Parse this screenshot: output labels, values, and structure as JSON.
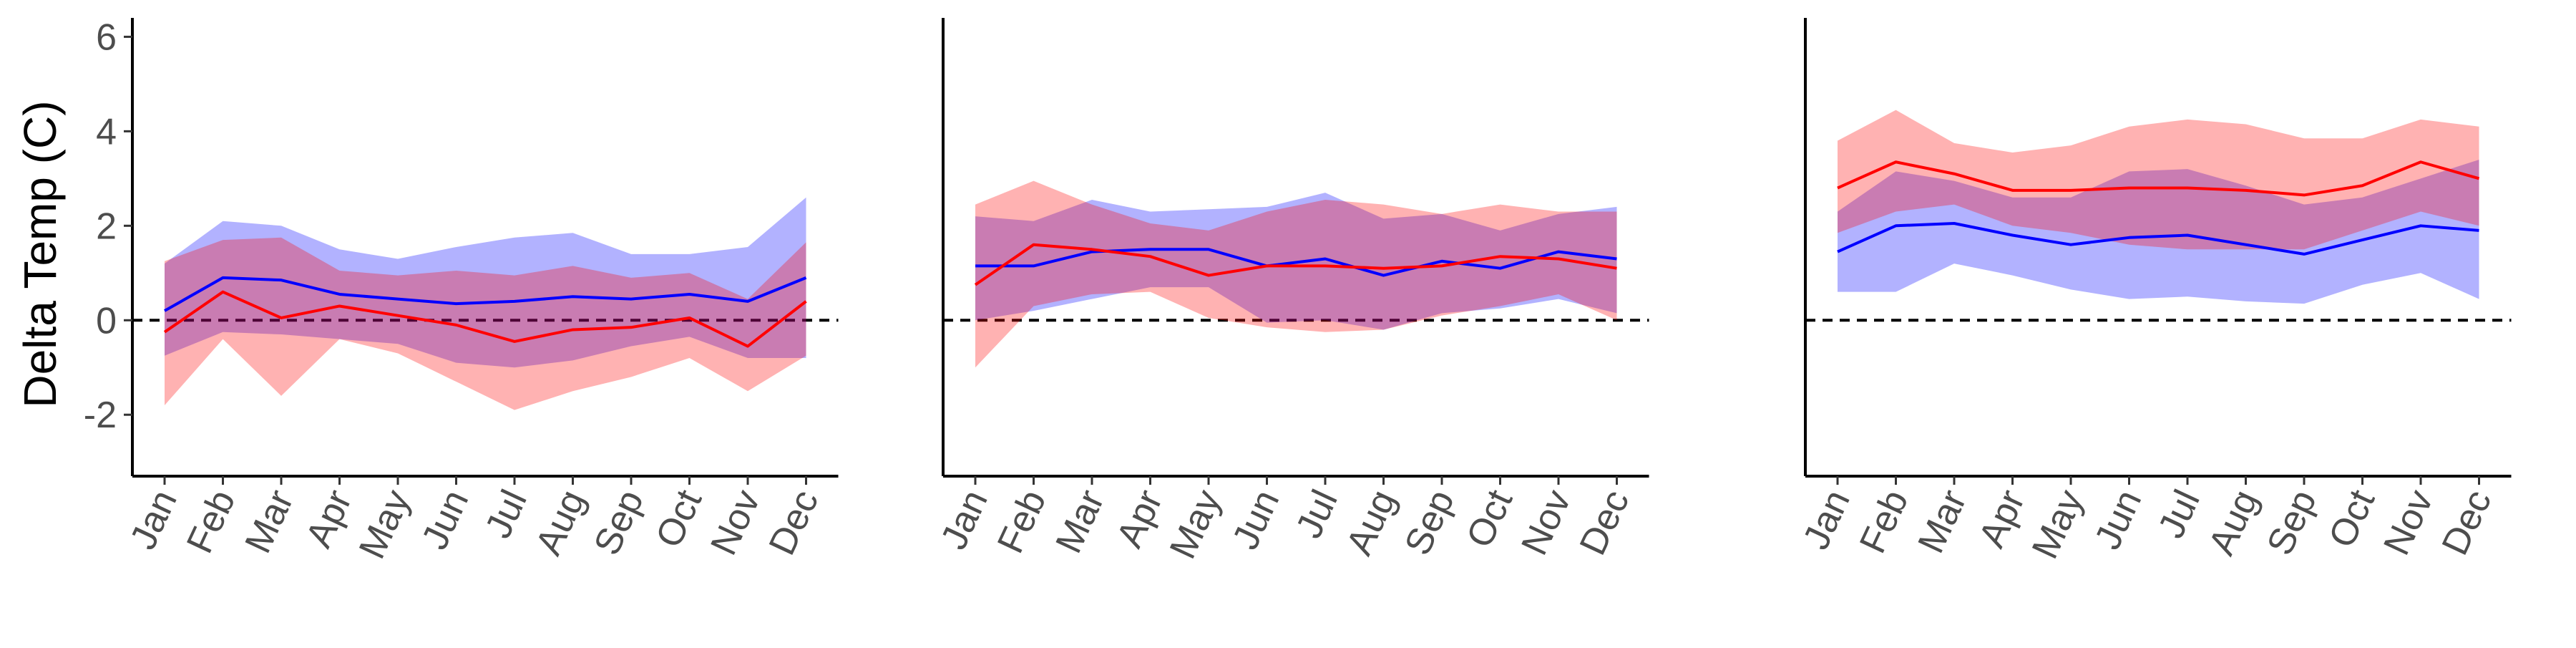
{
  "chart_data": [
    {
      "type": "area",
      "ylabel": "Delta Temp (C)",
      "ylim": [
        -3.3,
        6.4
      ],
      "yticks": [
        -2,
        0,
        2,
        4,
        6
      ],
      "categories": [
        "Jan",
        "Feb",
        "Mar",
        "Apr",
        "May",
        "Jun",
        "Jul",
        "Aug",
        "Sep",
        "Oct",
        "Nov",
        "Dec"
      ],
      "reference_line": 0,
      "series": [
        {
          "color": "#0000ff",
          "line": [
            0.2,
            0.9,
            0.85,
            0.55,
            0.45,
            0.35,
            0.4,
            0.5,
            0.45,
            0.55,
            0.4,
            0.9
          ],
          "lower": [
            -0.75,
            -0.25,
            -0.3,
            -0.4,
            -0.5,
            -0.9,
            -1.0,
            -0.85,
            -0.55,
            -0.35,
            -0.8,
            -0.8
          ],
          "upper": [
            1.2,
            2.1,
            2.0,
            1.5,
            1.3,
            1.55,
            1.75,
            1.85,
            1.4,
            1.4,
            1.55,
            2.6
          ]
        },
        {
          "color": "#ff0000",
          "line": [
            -0.25,
            0.6,
            0.05,
            0.3,
            0.1,
            -0.1,
            -0.45,
            -0.2,
            -0.15,
            0.05,
            -0.55,
            0.4
          ],
          "lower": [
            -1.8,
            -0.4,
            -1.6,
            -0.4,
            -0.7,
            -1.3,
            -1.9,
            -1.5,
            -1.2,
            -0.8,
            -1.5,
            -0.75
          ],
          "upper": [
            1.25,
            1.7,
            1.75,
            1.05,
            0.95,
            1.05,
            0.95,
            1.15,
            0.9,
            1.0,
            0.45,
            1.65
          ]
        }
      ]
    },
    {
      "type": "area",
      "ylim": [
        -3.3,
        6.4
      ],
      "categories": [
        "Jan",
        "Feb",
        "Mar",
        "Apr",
        "May",
        "Jun",
        "Jul",
        "Aug",
        "Sep",
        "Oct",
        "Nov",
        "Dec"
      ],
      "reference_line": 0,
      "series": [
        {
          "color": "#0000ff",
          "line": [
            1.15,
            1.15,
            1.45,
            1.5,
            1.5,
            1.15,
            1.3,
            0.95,
            1.25,
            1.1,
            1.45,
            1.3
          ],
          "lower": [
            0.0,
            0.2,
            0.45,
            0.7,
            0.7,
            -0.05,
            0.0,
            -0.2,
            0.15,
            0.25,
            0.45,
            0.15
          ],
          "upper": [
            2.2,
            2.1,
            2.55,
            2.3,
            2.35,
            2.4,
            2.7,
            2.15,
            2.25,
            1.9,
            2.25,
            2.4
          ]
        },
        {
          "color": "#ff0000",
          "line": [
            0.75,
            1.6,
            1.5,
            1.35,
            0.95,
            1.15,
            1.15,
            1.1,
            1.15,
            1.35,
            1.3,
            1.1
          ],
          "lower": [
            -1.0,
            0.3,
            0.55,
            0.6,
            0.05,
            -0.15,
            -0.25,
            -0.2,
            0.1,
            0.3,
            0.55,
            0.0
          ],
          "upper": [
            2.45,
            2.95,
            2.45,
            2.05,
            1.9,
            2.3,
            2.55,
            2.45,
            2.25,
            2.45,
            2.3,
            2.3
          ]
        }
      ]
    },
    {
      "type": "area",
      "ylim": [
        -3.3,
        6.4
      ],
      "categories": [
        "Jan",
        "Feb",
        "Mar",
        "Apr",
        "May",
        "Jun",
        "Jul",
        "Aug",
        "Sep",
        "Oct",
        "Nov",
        "Dec"
      ],
      "reference_line": 0,
      "series": [
        {
          "color": "#0000ff",
          "line": [
            1.45,
            2.0,
            2.05,
            1.8,
            1.6,
            1.75,
            1.8,
            1.6,
            1.4,
            1.7,
            2.0,
            1.9
          ],
          "lower": [
            0.6,
            0.6,
            1.2,
            0.95,
            0.65,
            0.45,
            0.5,
            0.4,
            0.35,
            0.75,
            1.0,
            0.45
          ],
          "upper": [
            2.3,
            3.15,
            2.95,
            2.6,
            2.6,
            3.15,
            3.2,
            2.85,
            2.45,
            2.6,
            3.0,
            3.4
          ]
        },
        {
          "color": "#ff0000",
          "line": [
            2.8,
            3.35,
            3.1,
            2.75,
            2.75,
            2.8,
            2.8,
            2.75,
            2.65,
            2.85,
            3.35,
            3.0
          ],
          "lower": [
            1.85,
            2.3,
            2.45,
            2.0,
            1.85,
            1.6,
            1.5,
            1.5,
            1.5,
            1.9,
            2.3,
            2.0
          ],
          "upper": [
            3.8,
            4.45,
            3.75,
            3.55,
            3.7,
            4.1,
            4.25,
            4.15,
            3.85,
            3.85,
            4.25,
            4.1
          ]
        }
      ]
    }
  ]
}
